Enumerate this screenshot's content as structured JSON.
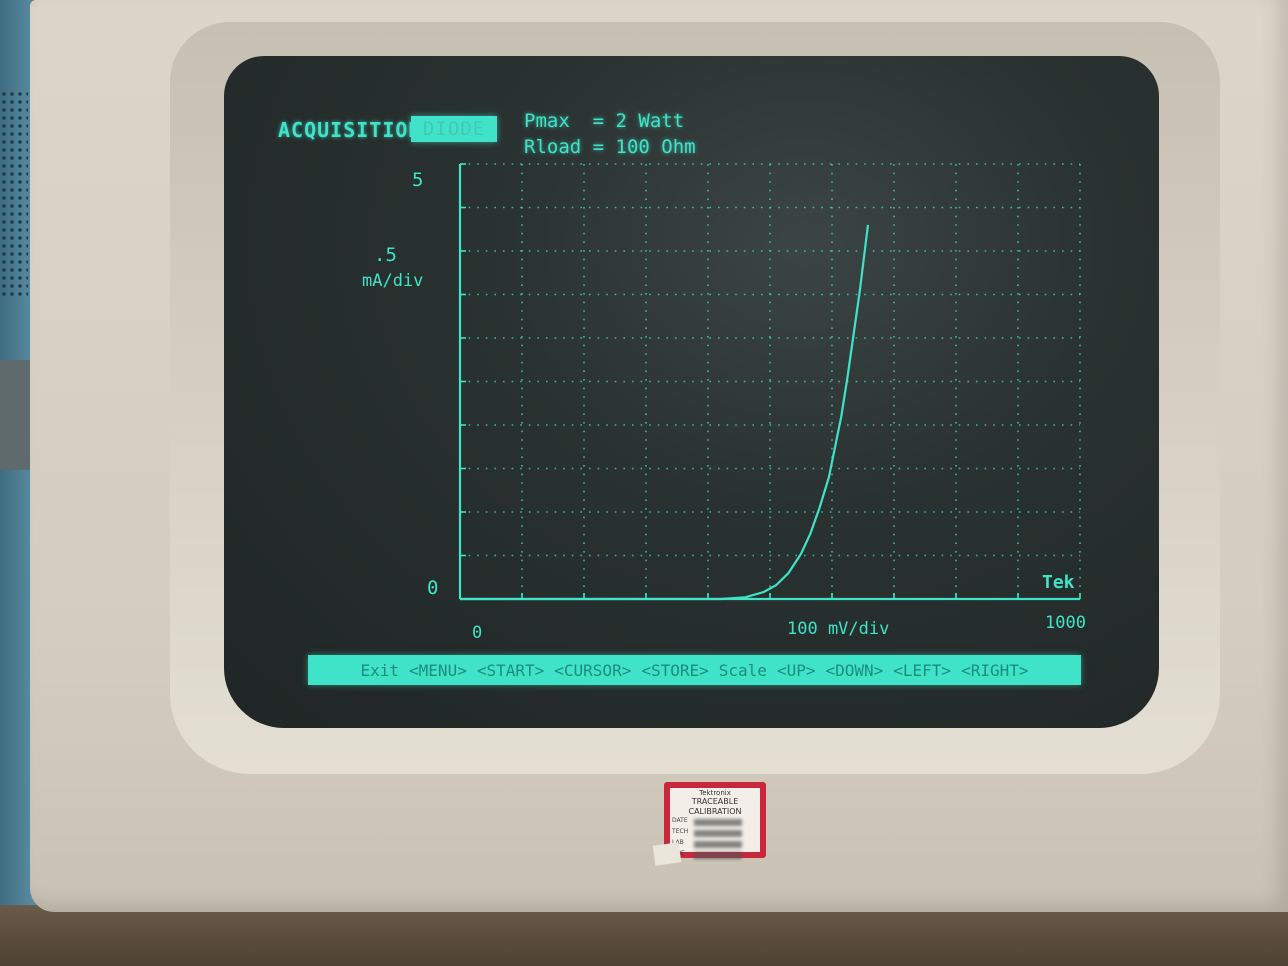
{
  "header": {
    "acquisition": "ACQUISITION",
    "mode_tab": "DIODE",
    "param1": "Pmax  = 2 Watt",
    "param2": "Rload = 100 Ohm"
  },
  "chart_data": {
    "type": "line",
    "y_tick_top": "5",
    "y_tick_zero": "0",
    "y_scale": ".5",
    "y_unit": "mA/div",
    "x_tick_zero": "0",
    "x_scale": "100 mV/div",
    "x_tick_end": "1000",
    "brand": "Tek",
    "xlim": [
      0,
      1000
    ],
    "ylim": [
      0,
      5
    ],
    "grid": true,
    "series": [
      {
        "x": [
          0,
          420,
          460,
          490,
          510,
          530,
          550,
          565,
          580,
          595,
          605,
          615,
          625,
          635,
          645,
          652,
          658
        ],
        "y": [
          0,
          0,
          0.02,
          0.08,
          0.16,
          0.3,
          0.52,
          0.75,
          1.05,
          1.4,
          1.75,
          2.1,
          2.55,
          3.05,
          3.55,
          3.95,
          4.3
        ]
      }
    ]
  },
  "menu": {
    "items": [
      "Exit",
      "<MENU>",
      "<START>",
      "<CURSOR>",
      "<STORE>",
      "Scale",
      "<UP>",
      "<DOWN>",
      "<LEFT>",
      "<RIGHT>"
    ]
  },
  "calibration_label": {
    "brand": "Tektronix",
    "title": "TRACEABLE CALIBRATION",
    "rows": [
      "DATE",
      "TECH",
      "LAB",
      "DUE"
    ]
  },
  "colors": {
    "phosphor": "#3fe3c8",
    "screen": "#2a3231",
    "bezel": "#d6d0c4",
    "label_red": "#c8283b"
  }
}
